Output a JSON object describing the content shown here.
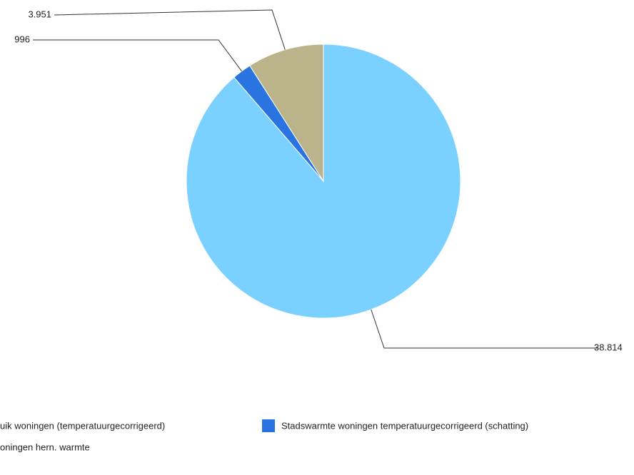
{
  "chart_data": {
    "type": "pie",
    "title": "",
    "slices": [
      {
        "name": "Gasverbruik woningen (temperatuurgecorrigeerd)",
        "legend_text": "uik woningen (temperatuurgecorrigeerd)",
        "value": 38814,
        "value_label": "38.814",
        "color": "#7ad1ff"
      },
      {
        "name": "Stadswarmte woningen temperatuurgecorrigeerd (schatting)",
        "legend_text": "Stadswarmte woningen temperatuurgecorrigeerd (schatting)",
        "value": 996,
        "value_label": "996",
        "color": "#2a74e2"
      },
      {
        "name": "Woningen hern. warmte",
        "legend_text": "oningen hern. warmte",
        "value": 3951,
        "value_label": "3.951",
        "color": "#bbb38a"
      }
    ],
    "legend_position": "bottom",
    "start_angle": "12 o'clock",
    "direction": "clockwise"
  }
}
